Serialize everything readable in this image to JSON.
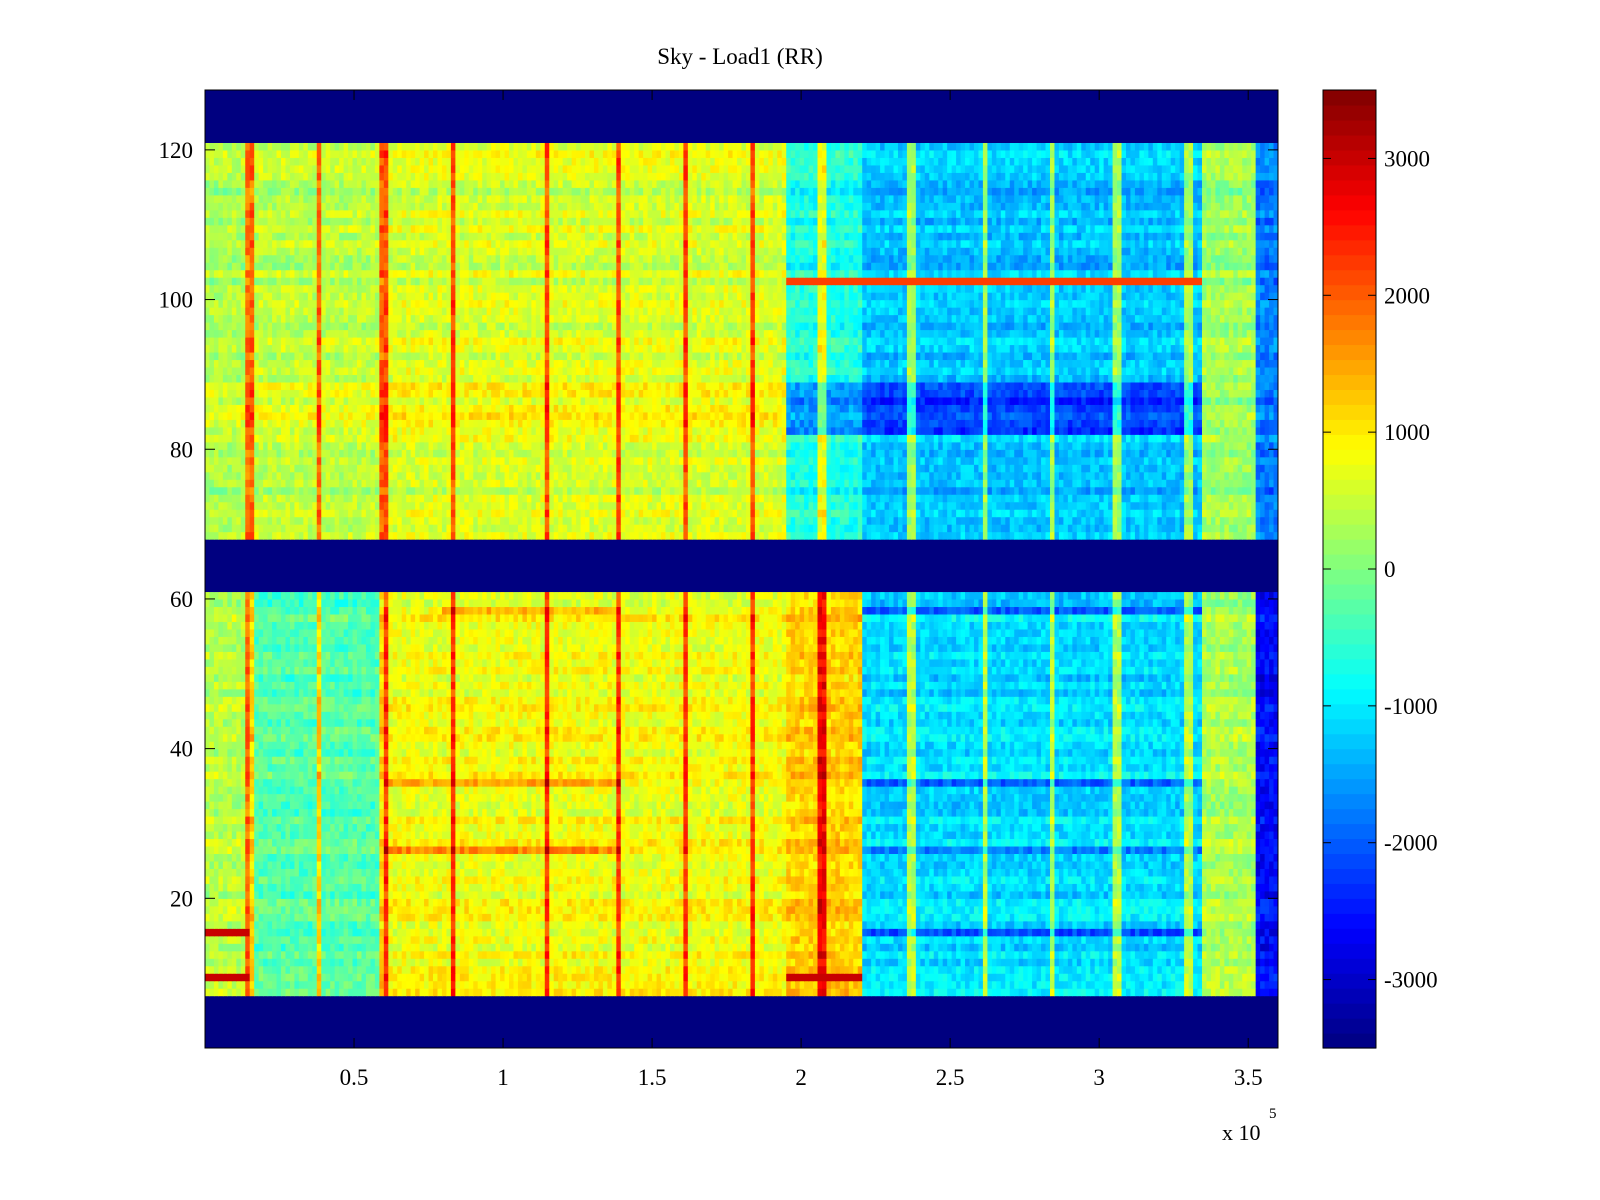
{
  "chart_data": {
    "type": "heatmap",
    "title": "Sky - Load1 (RR)",
    "xlabel": "",
    "ylabel": "",
    "x_multiplier_label": "x 10",
    "x_multiplier_exponent": "5",
    "xlim": [
      0,
      360000
    ],
    "ylim": [
      0,
      128
    ],
    "x_ticks": [
      50000,
      100000,
      150000,
      200000,
      250000,
      300000,
      350000
    ],
    "x_tick_labels": [
      "0.5",
      "1",
      "1.5",
      "2",
      "2.5",
      "3",
      "3.5"
    ],
    "y_ticks": [
      20,
      40,
      60,
      80,
      100,
      120
    ],
    "y_tick_labels": [
      "20",
      "40",
      "60",
      "80",
      "100",
      "120"
    ],
    "colormap": "jet",
    "clim": [
      -3500,
      3500
    ],
    "colorbar": {
      "ticks": [
        3000,
        2000,
        1000,
        0,
        -1000,
        -2000,
        -3000
      ],
      "tick_labels": [
        "3000",
        "2000",
        "1000",
        "0",
        "-1000",
        "-2000",
        "-3000"
      ]
    },
    "masked_rows_value": -3500,
    "masked_row_ranges": [
      [
        0,
        7
      ],
      [
        61,
        68
      ],
      [
        121,
        128
      ]
    ],
    "segments": [
      {
        "x_range": [
          0,
          15000
        ],
        "rows_8_61_mean": 400,
        "rows_68_121_mean": 300
      },
      {
        "x_range": [
          15000,
          60000
        ],
        "rows_8_61_mean": -300,
        "rows_68_121_mean": 400
      },
      {
        "x_range": [
          60000,
          195000
        ],
        "rows_8_61_mean": 800,
        "rows_68_121_mean": 600
      },
      {
        "x_range": [
          195000,
          220000
        ],
        "rows_8_61_mean": 1200,
        "rows_68_121_mean": -700
      },
      {
        "x_range": [
          220000,
          335000
        ],
        "rows_8_61_mean": -1100,
        "rows_68_121_mean": -1300
      },
      {
        "x_range": [
          335000,
          352000
        ],
        "rows_8_61_mean": 300,
        "rows_68_121_mean": 200
      },
      {
        "x_range": [
          352000,
          360000
        ],
        "rows_8_61_mean": -2600,
        "rows_68_121_mean": -1800
      }
    ],
    "vertical_streaks_x": [
      15000,
      38000,
      60000,
      83000,
      115000,
      139000,
      161000,
      184000,
      207000,
      237000,
      262000,
      284000,
      306000,
      330000
    ],
    "strong_rows": [
      {
        "row": 9,
        "note": "high at start and at x 195000-220000"
      },
      {
        "row": 15,
        "note": "high at start, blue at 220000-335000"
      },
      {
        "row": 26,
        "note": "orange band at 60000-140000, deep blue at 220000-335000"
      },
      {
        "row": 35,
        "note": "orange band at 60000-140000, blue at 220000-335000"
      },
      {
        "row": 58,
        "note": "orange band at 80000-140000, blue at 220000-335000"
      },
      {
        "row": 85,
        "note": "yellow at 0-195000, deep blue at 195000-335000"
      },
      {
        "row": 102,
        "note": "red band at 195000-335000"
      }
    ]
  }
}
